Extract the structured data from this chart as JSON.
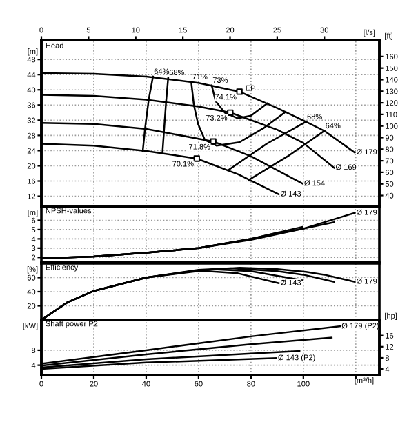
{
  "chart_data": [
    {
      "type": "line",
      "title": "Head",
      "ylabel": "[m]",
      "y2label": "[ft]",
      "x2label": "[l/s]",
      "tick_labels": "y",
      "grid": true,
      "xlim": [
        0,
        129
      ],
      "xticks": [
        0,
        20,
        40,
        60,
        80,
        100,
        120
      ],
      "ylim": [
        9.2,
        53.1
      ],
      "yticks": [
        12,
        16,
        20,
        24,
        28,
        32,
        36,
        40,
        44,
        48
      ],
      "x2lim": [
        0,
        35.83
      ],
      "x2ticks": [
        0,
        5,
        10,
        15,
        20,
        25,
        30
      ],
      "y2lim": [
        30.2,
        174.2
      ],
      "y2ticks": [
        40,
        50,
        60,
        70,
        80,
        90,
        100,
        110,
        120,
        130,
        140,
        150,
        160
      ],
      "series": [
        {
          "name": "Ø 179",
          "color": "#000000",
          "x": [
            0,
            20,
            40,
            60,
            75.6,
            90,
            101,
            108,
            119.6
          ],
          "values": [
            44.4,
            44.2,
            43.5,
            41.8,
            39.5,
            35.2,
            31.6,
            29.2,
            23.5
          ]
        },
        {
          "name": "Ø 169",
          "color": "#000000",
          "x": [
            0,
            20,
            40,
            60,
            72.1,
            90,
            100,
            111.7
          ],
          "values": [
            38.7,
            38.4,
            37.4,
            35.6,
            34.0,
            29.5,
            26.0,
            19.5
          ]
        },
        {
          "name": "Ø 154",
          "color": "#000000",
          "x": [
            0,
            20,
            40,
            65.6,
            80,
            99.7
          ],
          "values": [
            31.3,
            31.0,
            29.7,
            26.4,
            22.5,
            15.3
          ]
        },
        {
          "name": "Ø 143",
          "color": "#000000",
          "x": [
            0,
            20,
            40,
            59.3,
            75,
            90.6
          ],
          "values": [
            25.8,
            25.3,
            23.9,
            21.9,
            17.8,
            12.5
          ]
        },
        {
          "color": "#000000",
          "x": [
            42.6,
            41.0,
            39.6,
            38.7
          ],
          "values": [
            43.5,
            37.6,
            30.0,
            23.9
          ]
        },
        {
          "color": "#000000",
          "x": [
            48.4,
            47.6,
            46.8,
            46.2
          ],
          "values": [
            43.2,
            36.9,
            29.2,
            23.3
          ]
        },
        {
          "color": "#000000",
          "x": [
            57.2,
            58.2,
            59.8,
            62.4,
            66.8,
            75.6,
            85,
            93.2
          ],
          "values": [
            42.1,
            36.0,
            31.0,
            26.8,
            25.3,
            26.2,
            30.0,
            34.2
          ]
        },
        {
          "color": "#000000",
          "x": [
            65.0,
            66.5,
            70,
            75,
            80,
            86.2
          ],
          "values": [
            41.2,
            37.0,
            34.0,
            32.5,
            33.2,
            36.4
          ]
        },
        {
          "color": "#000000",
          "x": [
            71.2,
            86,
            101
          ],
          "values": [
            18.8,
            25.8,
            31.6
          ]
        },
        {
          "color": "#000000",
          "x": [
            79.2,
            94,
            108
          ],
          "values": [
            16.3,
            22.5,
            29.2
          ]
        },
        {
          "type": "scatter",
          "marker": "square",
          "color": "#000000",
          "x": [
            75.6,
            72.1,
            65.6,
            59.3
          ],
          "values": [
            39.5,
            34.0,
            26.4,
            21.9
          ]
        }
      ],
      "annotations": [
        {
          "text": "64%",
          "x": 42.6,
          "y": 43.5
        },
        {
          "text": "68%",
          "x": 48.4,
          "y": 43.2
        },
        {
          "text": "71%",
          "x": 57.2,
          "y": 42.1
        },
        {
          "text": "73%",
          "x": 65.0,
          "y": 41.2
        },
        {
          "text": "EP",
          "x": 77.5,
          "y": 39.1
        },
        {
          "text": "74.1%",
          "x": 75.6,
          "y": 39.5
        },
        {
          "text": "73.2%",
          "x": 72.1,
          "y": 34.0
        },
        {
          "text": "71.8%",
          "x": 65.6,
          "y": 26.4
        },
        {
          "text": "70.1%",
          "x": 59.3,
          "y": 21.9
        },
        {
          "text": "68%",
          "x": 101,
          "y": 31.6
        },
        {
          "text": "64%",
          "x": 108,
          "y": 29.2
        }
      ]
    },
    {
      "type": "line",
      "title": "NPSH-values",
      "ylabel": "[m]",
      "tick_labels": "y",
      "grid": true,
      "xlim": [
        0,
        129
      ],
      "xticks": [
        0,
        20,
        40,
        60,
        80,
        100,
        120
      ],
      "ylim": [
        1.5,
        7.45
      ],
      "yticks": [
        2,
        3,
        4,
        5,
        6
      ],
      "series": [
        {
          "name": "Ø 179",
          "color": "#000000",
          "x": [
            0,
            20,
            40,
            60,
            80,
            100,
            119.6
          ],
          "values": [
            1.9,
            2.1,
            2.5,
            3.0,
            3.9,
            5.1,
            6.8
          ]
        },
        {
          "color": "#000000",
          "x": [
            0,
            20,
            40,
            60,
            80,
            100,
            111.7
          ],
          "values": [
            1.9,
            2.1,
            2.5,
            3.0,
            4.0,
            5.1,
            5.8
          ]
        },
        {
          "color": "#000000",
          "x": [
            0,
            20,
            40,
            60,
            80,
            99.7
          ],
          "values": [
            1.9,
            2.1,
            2.5,
            3.0,
            4.0,
            5.3
          ]
        },
        {
          "color": "#000000",
          "x": [
            0,
            20,
            40,
            60,
            80,
            90.6
          ],
          "values": [
            1.9,
            2.1,
            2.5,
            3.0,
            4.0,
            4.7
          ]
        }
      ]
    },
    {
      "type": "line",
      "title": "Efficiency",
      "ylabel": "[%]",
      "tick_labels": "y",
      "grid": true,
      "xlim": [
        0,
        129
      ],
      "xticks": [
        0,
        20,
        40,
        60,
        80,
        100,
        120
      ],
      "ylim": [
        0,
        80
      ],
      "yticks": [
        20,
        40,
        60
      ],
      "series": [
        {
          "name": "Ø 179",
          "color": "#000000",
          "x": [
            0,
            10,
            20,
            40,
            60,
            75.6,
            90,
            101,
            108,
            119.6
          ],
          "values": [
            0,
            25,
            41,
            60,
            70,
            74,
            72,
            68,
            64,
            54
          ]
        },
        {
          "color": "#000000",
          "x": [
            0,
            10,
            20,
            40,
            60,
            72.1,
            90,
            100,
            111.7
          ],
          "values": [
            0,
            25,
            41,
            60,
            71,
            73.2,
            69,
            64,
            54
          ]
        },
        {
          "color": "#000000",
          "x": [
            0,
            10,
            20,
            40,
            65.6,
            80,
            99.7
          ],
          "values": [
            0,
            25,
            41,
            60,
            71.8,
            69,
            56
          ]
        },
        {
          "name": "Ø 143",
          "color": "#000000",
          "x": [
            0,
            10,
            20,
            40,
            59.3,
            75,
            90.6
          ],
          "values": [
            0,
            25,
            41,
            60,
            70.1,
            66,
            52
          ]
        }
      ]
    },
    {
      "type": "line",
      "title": "Shaft power P2",
      "ylabel": "[kW]",
      "y2label": "[hp]",
      "xlabel": "[m³/h]",
      "grid": true,
      "xlim": [
        0,
        129
      ],
      "xticks": [
        0,
        20,
        40,
        60,
        80,
        100,
        {
          "value": 120,
          "label": null
        }
      ],
      "ylim": [
        1.35,
        16.1
      ],
      "yticks": [
        4,
        8
      ],
      "y2lim": [
        1.81,
        21.6
      ],
      "y2ticks": [
        4,
        8,
        12,
        16
      ],
      "series": [
        {
          "name": "Ø 179 (P2)",
          "color": "#000000",
          "x": [
            0,
            40,
            80,
            114
          ],
          "values": [
            4.4,
            8.0,
            11.7,
            14.4
          ]
        },
        {
          "color": "#000000",
          "x": [
            0,
            40,
            80,
            110.8
          ],
          "values": [
            3.9,
            6.9,
            9.6,
            11.4
          ]
        },
        {
          "color": "#000000",
          "x": [
            0,
            40,
            80,
            98.5
          ],
          "values": [
            3.4,
            5.6,
            7.1,
            7.8
          ]
        },
        {
          "name": "Ø 143 (P2)",
          "color": "#000000",
          "x": [
            0,
            40,
            89.7
          ],
          "values": [
            3.0,
            4.7,
            5.9
          ]
        }
      ]
    }
  ]
}
